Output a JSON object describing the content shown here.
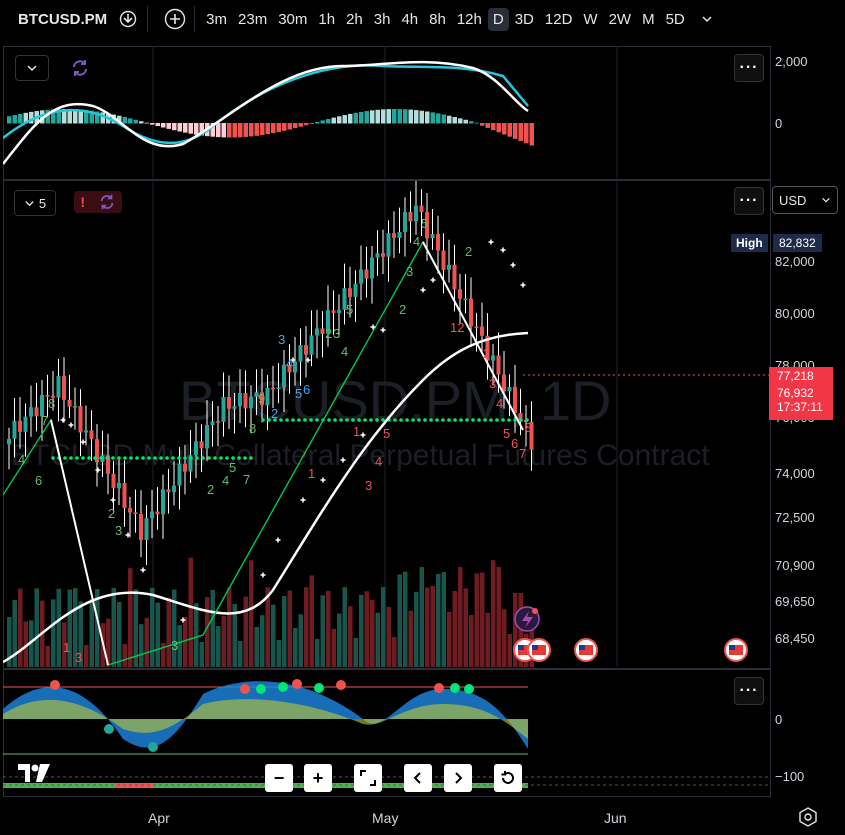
{
  "toolbar": {
    "symbol": "BTCUSD.PM",
    "timeframes": [
      "3m",
      "23m",
      "30m",
      "1h",
      "2h",
      "3h",
      "4h",
      "8h",
      "12h",
      "D",
      "3D",
      "12D",
      "W",
      "2W",
      "M",
      "5D"
    ],
    "active_timeframe": "D"
  },
  "watermark": {
    "main": "BTCUSD.PM, 1D",
    "sub": "BTCUSD Multi Collateral Perpetual Futures Contract"
  },
  "macd_pane": {
    "axis": [
      "2,000",
      "0"
    ]
  },
  "price_pane": {
    "indicator_count": "5",
    "currency": "USD",
    "high_label": "High",
    "high_value": "82,832",
    "axis": [
      "82,000",
      "80,000",
      "78,000",
      "76,000",
      "74,000",
      "72,500",
      "70,900",
      "69,650",
      "68,450"
    ],
    "last_price": "77,218",
    "close_price": "76,932",
    "countdown": "17:37:11"
  },
  "osc_pane": {
    "axis": [
      "0",
      "−100"
    ]
  },
  "x_axis": [
    "Apr",
    "May",
    "Jun"
  ],
  "colors": {
    "up": "#26a69a",
    "down": "#ef5350",
    "macd_line": "#ffffff",
    "signal_line": "#26c6da",
    "dots": "#00e676"
  }
}
